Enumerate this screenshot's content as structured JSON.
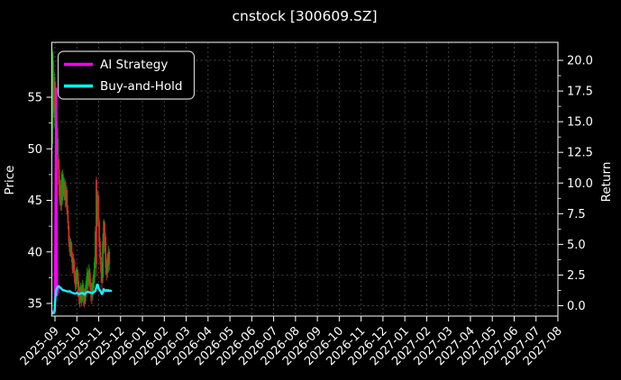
{
  "chart_data": {
    "type": "candlestick",
    "title": "cnstock [300609.SZ]",
    "legend": {
      "position": "upper-left",
      "items": [
        {
          "label": "AI Strategy",
          "color": "#ff00ff"
        },
        {
          "label": "Buy-and-Hold",
          "color": "#00ffff"
        }
      ]
    },
    "left_axis": {
      "label": "Price",
      "tick_labels": [
        "35",
        "40",
        "45",
        "50",
        "55"
      ],
      "tick_values": [
        35,
        40,
        45,
        50,
        55
      ],
      "minor_values": [
        37.5,
        42.5,
        47.5,
        52.5
      ],
      "range_approx": [
        33.4,
        60.3
      ]
    },
    "right_axis": {
      "label": "Return",
      "tick_labels": [
        "0.0",
        "2.5",
        "5.0",
        "7.5",
        "10.0",
        "12.5",
        "15.0",
        "17.5",
        "20.0"
      ],
      "tick_values": [
        0,
        2.5,
        5,
        7.5,
        10,
        12.5,
        15,
        17.5,
        20
      ],
      "minor_values": [
        1.25,
        3.75,
        6.25,
        8.75,
        11.25,
        13.75,
        16.25,
        18.75
      ],
      "range_approx": [
        -0.9,
        20.8
      ]
    },
    "x_axis": {
      "tick_labels": [
        "2025-09",
        "2025-10",
        "2025-11",
        "2025-12",
        "2026-01",
        "2026-02",
        "2026-03",
        "2026-04",
        "2026-05",
        "2026-06",
        "2026-07",
        "2026-08",
        "2026-09",
        "2026-10",
        "2026-11",
        "2026-12",
        "2027-01",
        "2027-02",
        "2027-03",
        "2027-04",
        "2027-05",
        "2027-06",
        "2027-07",
        "2027-08"
      ],
      "grid": true
    },
    "colors": {
      "up": "#0ca10c",
      "down": "#d62b2b",
      "grid": "#464646",
      "spine": "#e8e8e8",
      "background": "#000000",
      "text": "#ffffff"
    },
    "candles_note": "arrays are [open,high,low,close] per trading day starting 2025-09-01, plotted on Price axis",
    "candles": [
      [
        50.5,
        59.6,
        50.0,
        59.2
      ],
      [
        55.0,
        59.4,
        53.5,
        58.5
      ],
      [
        53.0,
        57.5,
        52.0,
        56.5
      ],
      [
        56.5,
        57.0,
        53.0,
        54.0
      ],
      [
        50.0,
        53.5,
        48.5,
        52.5
      ],
      [
        52.5,
        53.0,
        49.0,
        49.5
      ],
      [
        49.5,
        52.0,
        48.0,
        51.0
      ],
      [
        49.0,
        49.5,
        45.5,
        46.5
      ],
      [
        47.0,
        48.0,
        44.5,
        45.0
      ],
      [
        46.0,
        46.5,
        44.0,
        44.8
      ],
      [
        44.5,
        47.8,
        44.0,
        47.0
      ],
      [
        45.0,
        48.0,
        44.6,
        47.5
      ],
      [
        46.0,
        47.6,
        45.3,
        47.2
      ],
      [
        45.5,
        47.2,
        45.0,
        46.8
      ],
      [
        46.8,
        47.0,
        44.3,
        45.0
      ],
      [
        45.0,
        46.5,
        44.4,
        46.0
      ],
      [
        46.0,
        46.3,
        43.6,
        44.0
      ],
      [
        44.0,
        44.5,
        42.2,
        42.8
      ],
      [
        42.5,
        43.0,
        40.5,
        41.0
      ],
      [
        41.0,
        41.5,
        39.6,
        40.0
      ],
      [
        40.0,
        41.3,
        39.5,
        41.0
      ],
      [
        40.8,
        41.0,
        39.0,
        39.5
      ],
      [
        39.5,
        40.0,
        37.9,
        38.3
      ],
      [
        38.5,
        39.8,
        38.0,
        39.4
      ],
      [
        39.0,
        39.3,
        37.0,
        37.6
      ],
      [
        37.8,
        38.2,
        36.2,
        36.8
      ],
      [
        36.8,
        38.4,
        36.4,
        38.0
      ],
      [
        37.2,
        38.6,
        36.9,
        38.2
      ],
      [
        38.0,
        38.3,
        35.6,
        36.6
      ],
      [
        36.8,
        37.2,
        34.9,
        35.6
      ],
      [
        36.0,
        36.6,
        34.6,
        35.2
      ],
      [
        35.4,
        37.0,
        35.0,
        36.6
      ],
      [
        36.4,
        36.8,
        34.7,
        35.3
      ],
      [
        35.5,
        37.3,
        35.1,
        36.8
      ],
      [
        36.5,
        37.0,
        34.8,
        35.5
      ],
      [
        36.0,
        36.4,
        34.6,
        35.0
      ],
      [
        35.2,
        36.8,
        34.9,
        36.4
      ],
      [
        36.0,
        37.6,
        35.6,
        37.2
      ],
      [
        36.8,
        38.5,
        36.4,
        38.0
      ],
      [
        38.0,
        38.3,
        36.2,
        36.8
      ],
      [
        37.0,
        38.8,
        36.6,
        38.2
      ],
      [
        38.0,
        38.4,
        36.3,
        36.9
      ],
      [
        37.0,
        37.4,
        35.2,
        35.9
      ],
      [
        36.5,
        37.0,
        34.9,
        35.6
      ],
      [
        35.8,
        37.5,
        35.3,
        37.0
      ],
      [
        36.5,
        38.2,
        36.0,
        37.8
      ],
      [
        37.5,
        39.5,
        37.0,
        39.0
      ],
      [
        39.0,
        42.5,
        38.4,
        42.0
      ],
      [
        47.0,
        47.3,
        37.6,
        38.8
      ],
      [
        43.0,
        46.0,
        42.5,
        45.5
      ],
      [
        45.5,
        45.8,
        42.4,
        43.0
      ],
      [
        43.0,
        43.4,
        40.4,
        41.0
      ],
      [
        41.0,
        41.4,
        38.8,
        39.4
      ],
      [
        39.5,
        40.0,
        37.0,
        38.0
      ],
      [
        38.5,
        39.0,
        36.2,
        37.0
      ],
      [
        37.5,
        41.8,
        37.0,
        41.0
      ],
      [
        40.5,
        43.2,
        39.8,
        43.0
      ],
      [
        42.8,
        43.0,
        40.0,
        40.5
      ],
      [
        41.5,
        41.8,
        37.8,
        38.5
      ],
      [
        39.0,
        39.4,
        37.2,
        37.8
      ],
      [
        38.0,
        39.8,
        37.5,
        39.2
      ],
      [
        38.6,
        40.6,
        38.0,
        40.0
      ],
      [
        40.0,
        40.3,
        38.2,
        38.8
      ]
    ],
    "series_note": "points are [trading-day-offset, return-value] plotted on Return axis",
    "series": [
      {
        "name": "AI Strategy",
        "color": "#ff00ff",
        "axis": "return",
        "points": [
          [
            0,
            -0.45
          ],
          [
            2.8,
            -0.45
          ],
          [
            4.2,
            17.7
          ],
          [
            5.2,
            0.85
          ],
          [
            7,
            1.6
          ],
          [
            9,
            1.45
          ],
          [
            11,
            1.3
          ],
          [
            13,
            1.25
          ],
          [
            15,
            1.2
          ],
          [
            17,
            1.15
          ],
          [
            19,
            1.18
          ],
          [
            21,
            1.08
          ],
          [
            23,
            1.02
          ],
          [
            25,
            0.98
          ],
          [
            27,
            1.05
          ],
          [
            29,
            0.93
          ],
          [
            31,
            1.0
          ],
          [
            33,
            1.05
          ],
          [
            35,
            0.9
          ],
          [
            37,
            1.08
          ],
          [
            39,
            1.14
          ],
          [
            41,
            1.08
          ],
          [
            43,
            1.02
          ],
          [
            45,
            1.1
          ],
          [
            47,
            1.2
          ],
          [
            48.5,
            1.7
          ],
          [
            49.5,
            1.72
          ],
          [
            50.5,
            1.4
          ],
          [
            52,
            1.25
          ],
          [
            54,
            0.95
          ],
          [
            55,
            1.05
          ],
          [
            56,
            1.35
          ],
          [
            57,
            1.25
          ],
          [
            58,
            1.2
          ],
          [
            59,
            1.28
          ],
          [
            60,
            1.2
          ],
          [
            61,
            1.27
          ],
          [
            62,
            1.2
          ],
          [
            63,
            1.24
          ],
          [
            64,
            1.2
          ]
        ]
      },
      {
        "name": "Buy-and-Hold",
        "color": "#00ffff",
        "axis": "return",
        "points": [
          [
            0,
            -0.62
          ],
          [
            1.5,
            -0.62
          ],
          [
            2.5,
            -0.45
          ],
          [
            4,
            1.25
          ],
          [
            5.5,
            1.5
          ],
          [
            7,
            1.6
          ],
          [
            9,
            1.45
          ],
          [
            11,
            1.3
          ],
          [
            13,
            1.25
          ],
          [
            15,
            1.2
          ],
          [
            17,
            1.15
          ],
          [
            19,
            1.18
          ],
          [
            21,
            1.08
          ],
          [
            23,
            1.02
          ],
          [
            25,
            0.98
          ],
          [
            27,
            1.05
          ],
          [
            29,
            0.93
          ],
          [
            31,
            1.0
          ],
          [
            33,
            1.05
          ],
          [
            35,
            0.9
          ],
          [
            37,
            1.08
          ],
          [
            39,
            1.14
          ],
          [
            41,
            1.08
          ],
          [
            43,
            1.02
          ],
          [
            45,
            1.1
          ],
          [
            47,
            1.2
          ],
          [
            48.5,
            1.7
          ],
          [
            49.5,
            1.72
          ],
          [
            50.5,
            1.4
          ],
          [
            52,
            1.25
          ],
          [
            54,
            0.95
          ],
          [
            55,
            1.05
          ],
          [
            56,
            1.35
          ],
          [
            57,
            1.25
          ],
          [
            58,
            1.2
          ],
          [
            59,
            1.28
          ],
          [
            60,
            1.2
          ],
          [
            61,
            1.27
          ],
          [
            62,
            1.2
          ],
          [
            63,
            1.24
          ],
          [
            64,
            1.2
          ]
        ]
      }
    ]
  }
}
